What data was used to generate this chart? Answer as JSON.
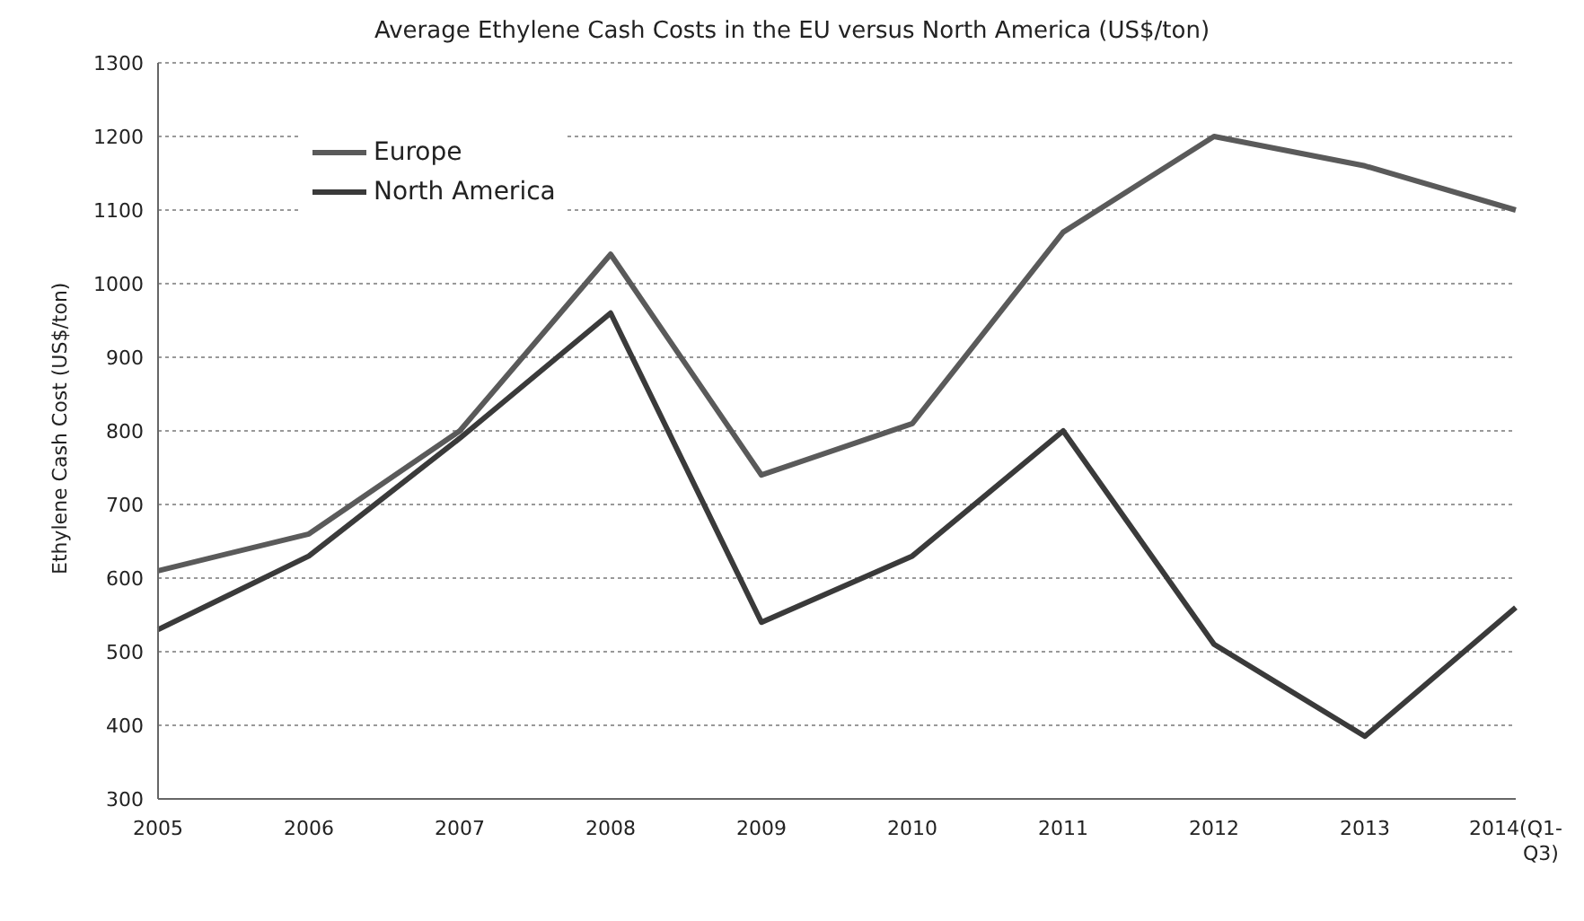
{
  "chart_data": {
    "type": "line",
    "title": "Average Ethylene Cash Costs in the EU versus North  America (US$/ton)",
    "ylabel": "Ethylene Cash Cost (US$/ton)",
    "categories": [
      "2005",
      "2006",
      "2007",
      "2008",
      "2009",
      "2010",
      "2011",
      "2012",
      "2013",
      "2014(Q1-Q3)"
    ],
    "series": [
      {
        "name": "Europe",
        "color": "#5a5a5a",
        "values": [
          610,
          660,
          800,
          1040,
          740,
          810,
          1070,
          1200,
          1160,
          1100
        ]
      },
      {
        "name": "North America",
        "color": "#3a3a3a",
        "values": [
          530,
          630,
          790,
          960,
          540,
          630,
          800,
          510,
          385,
          560
        ]
      }
    ],
    "ylim": [
      300,
      1300
    ],
    "yticks": [
      300,
      400,
      500,
      600,
      700,
      800,
      900,
      1000,
      1100,
      1200,
      1300
    ],
    "grid": "y",
    "legend": "top left",
    "marker": "none",
    "line_style": "solid"
  }
}
